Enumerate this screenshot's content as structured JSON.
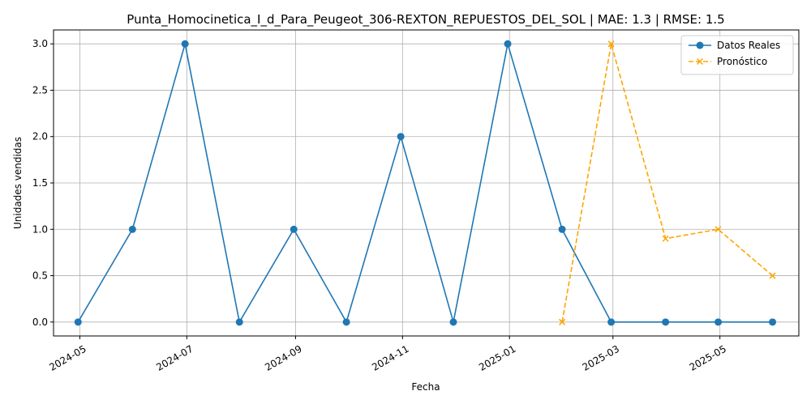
{
  "chart_data": {
    "type": "line",
    "title": "Punta_Homocinetica_I_d_Para_Peugeot_306-REXTON_REPUESTOS_DEL_SOL | MAE: 1.3 | RMSE: 1.5",
    "xlabel": "Fecha",
    "ylabel": "Unidades vendidas",
    "ylim": [
      -0.15,
      3.15
    ],
    "xlim": [
      "2024-04-16",
      "2025-06-15"
    ],
    "x_ticks": [
      "2024-05",
      "2024-07",
      "2024-09",
      "2024-11",
      "2025-01",
      "2025-03",
      "2025-05"
    ],
    "x_tick_dates": [
      "2024-05-01",
      "2024-07-01",
      "2024-09-01",
      "2024-11-01",
      "2025-01-01",
      "2025-03-01",
      "2025-05-01"
    ],
    "y_ticks": [
      "0.0",
      "0.5",
      "1.0",
      "1.5",
      "2.0",
      "2.5",
      "3.0"
    ],
    "grid": true,
    "legend_position": "top-right",
    "series": [
      {
        "name": "Datos Reales",
        "color": "#1f77b4",
        "line_style": "solid",
        "marker": "circle",
        "x": [
          "2024-04-30",
          "2024-05-31",
          "2024-06-30",
          "2024-07-31",
          "2024-08-31",
          "2024-09-30",
          "2024-10-31",
          "2024-11-30",
          "2024-12-31",
          "2025-01-31",
          "2025-02-28",
          "2025-03-31",
          "2025-04-30",
          "2025-05-31"
        ],
        "values": [
          0,
          1,
          3,
          0,
          1,
          0,
          2,
          0,
          3,
          1,
          0,
          0,
          0,
          0
        ]
      },
      {
        "name": "Pronóstico",
        "color": "#ffa500",
        "line_style": "dashed",
        "marker": "x",
        "x": [
          "2025-01-31",
          "2025-02-28",
          "2025-03-31",
          "2025-04-30",
          "2025-05-31"
        ],
        "values": [
          0,
          3,
          0.9,
          1,
          0.5
        ]
      }
    ]
  }
}
